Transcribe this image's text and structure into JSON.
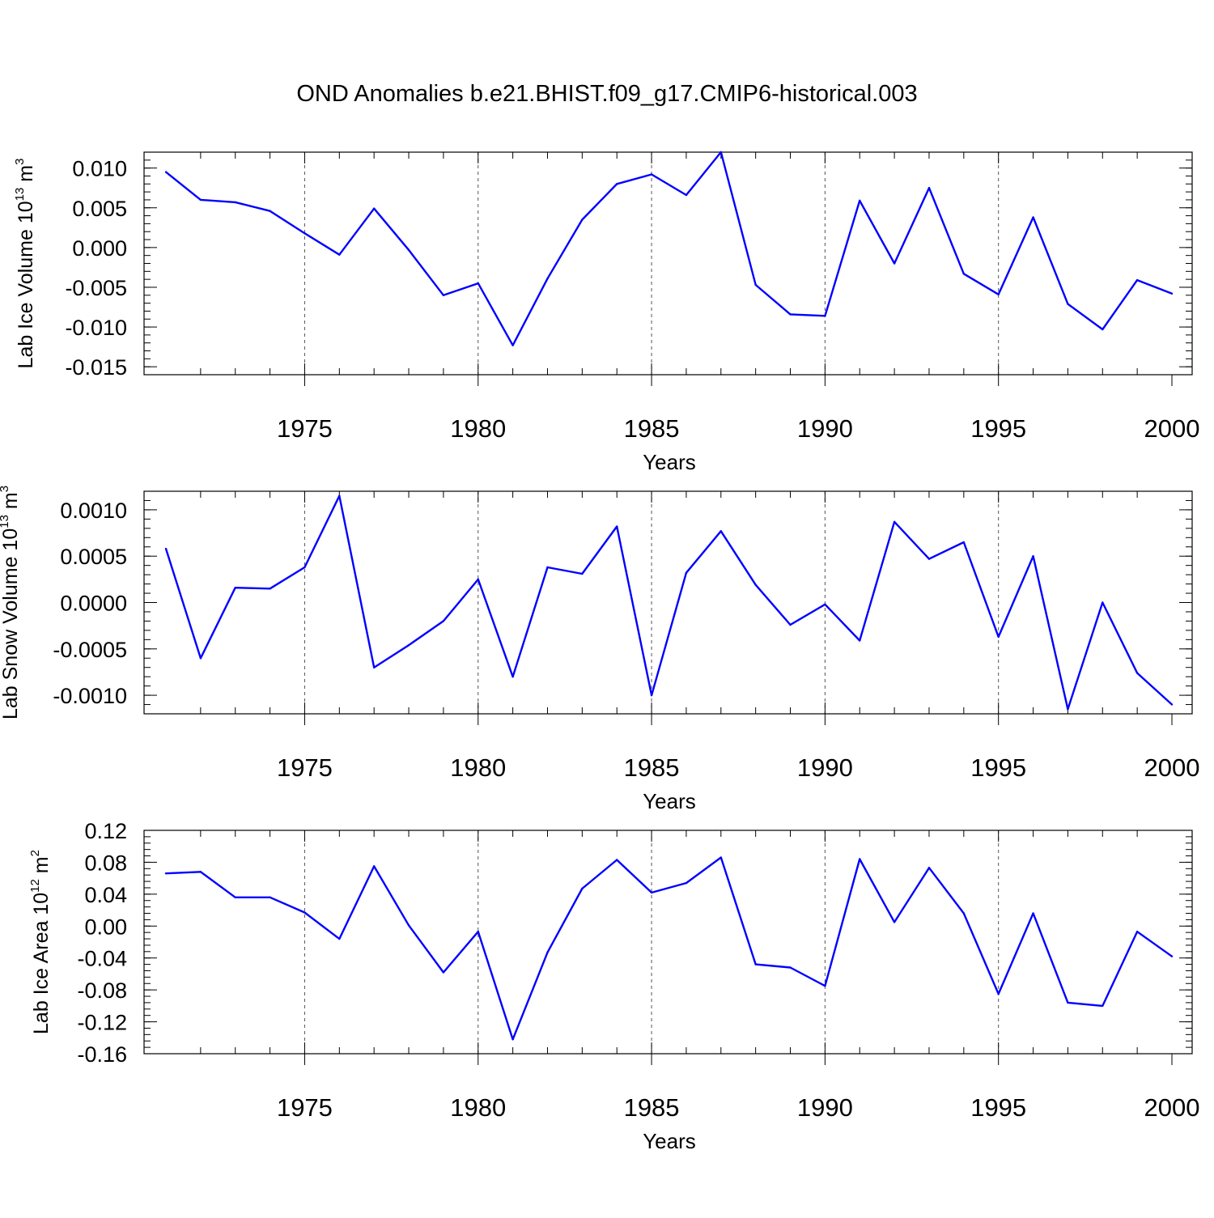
{
  "chart_data": {
    "title": "OND Anomalies b.e21.BHIST.f09_g17.CMIP6-historical.003",
    "line_color": "#0000ff",
    "panels": [
      {
        "type": "line",
        "ylabel": "Lab Ice Volume 10",
        "ylabel_exp": "13",
        "ylabel_unit": " m",
        "ylabel_unit_exp": "3",
        "xlabel": "Years",
        "xlim": [
          1971,
          2000
        ],
        "ylim": [
          -0.016,
          0.012
        ],
        "x_ticks": [
          1975,
          1980,
          1985,
          1990,
          1995,
          2000
        ],
        "x_tick_labels": [
          "1975",
          "1980",
          "1985",
          "1990",
          "1995",
          "2000"
        ],
        "y_ticks": [
          0.01,
          0.005,
          0.0,
          -0.005,
          -0.01,
          -0.015
        ],
        "y_tick_labels": [
          "0.010",
          "0.005",
          "0.000",
          "-0.005",
          "-0.010",
          "-0.015"
        ],
        "y_minor_step": 0.001,
        "grid": "dashed vertical at major x ticks",
        "x": [
          1971,
          1972,
          1973,
          1974,
          1975,
          1976,
          1977,
          1978,
          1979,
          1980,
          1981,
          1982,
          1983,
          1984,
          1985,
          1986,
          1987,
          1988,
          1989,
          1990,
          1991,
          1992,
          1993,
          1994,
          1995,
          1996,
          1997,
          1998,
          1999,
          2000
        ],
        "values": [
          0.0095,
          0.006,
          0.0057,
          0.0046,
          0.0018,
          -0.0009,
          0.0049,
          -0.0003,
          -0.006,
          -0.0045,
          -0.0123,
          -0.0039,
          0.0035,
          0.008,
          0.0092,
          0.0066,
          0.012,
          -0.0047,
          -0.0084,
          -0.0086,
          0.0059,
          -0.002,
          0.0075,
          -0.0033,
          -0.0059,
          0.0038,
          -0.0071,
          -0.0103,
          -0.0041,
          -0.0058
        ]
      },
      {
        "type": "line",
        "ylabel": "Lab Snow Volume 10",
        "ylabel_exp": "13",
        "ylabel_unit": " m",
        "ylabel_unit_exp": "3",
        "xlabel": "Years",
        "xlim": [
          1971,
          2000
        ],
        "ylim": [
          -0.0012,
          0.0012
        ],
        "x_ticks": [
          1975,
          1980,
          1985,
          1990,
          1995,
          2000
        ],
        "x_tick_labels": [
          "1975",
          "1980",
          "1985",
          "1990",
          "1995",
          "2000"
        ],
        "y_ticks": [
          0.001,
          0.0005,
          0.0,
          -0.0005,
          -0.001
        ],
        "y_tick_labels": [
          "0.0010",
          "0.0005",
          "0.0000",
          "-0.0005",
          "-0.0010"
        ],
        "y_minor_step": 0.0001,
        "grid": "dashed vertical at major x ticks",
        "x": [
          1971,
          1972,
          1973,
          1974,
          1975,
          1976,
          1977,
          1978,
          1979,
          1980,
          1981,
          1982,
          1983,
          1984,
          1985,
          1986,
          1987,
          1988,
          1989,
          1990,
          1991,
          1992,
          1993,
          1994,
          1995,
          1996,
          1997,
          1998,
          1999,
          2000
        ],
        "values": [
          0.00058,
          -0.0006,
          0.00016,
          0.00015,
          0.00038,
          0.00115,
          -0.0007,
          -0.00046,
          -0.0002,
          0.00025,
          -0.0008,
          0.00038,
          0.00031,
          0.00082,
          -0.001,
          0.00032,
          0.00077,
          0.00019,
          -0.00024,
          -2e-05,
          -0.00041,
          0.00087,
          0.00047,
          0.00065,
          -0.00037,
          0.0005,
          -0.00115,
          0.0,
          -0.00076,
          -0.0011
        ]
      },
      {
        "type": "line",
        "ylabel": "Lab Ice Area 10",
        "ylabel_exp": "12",
        "ylabel_unit": " m",
        "ylabel_unit_exp": "2",
        "xlabel": "Years",
        "xlim": [
          1971,
          2000
        ],
        "ylim": [
          -0.16,
          0.12
        ],
        "x_ticks": [
          1975,
          1980,
          1985,
          1990,
          1995,
          2000
        ],
        "x_tick_labels": [
          "1975",
          "1980",
          "1985",
          "1990",
          "1995",
          "2000"
        ],
        "y_ticks": [
          0.12,
          0.08,
          0.04,
          0.0,
          -0.04,
          -0.08,
          -0.12,
          -0.16
        ],
        "y_tick_labels": [
          "0.12",
          "0.08",
          "0.04",
          "0.00",
          "-0.04",
          "-0.08",
          "-0.12",
          "-0.16"
        ],
        "y_minor_step": 0.008,
        "grid": "dashed vertical at major x ticks",
        "x": [
          1971,
          1972,
          1973,
          1974,
          1975,
          1976,
          1977,
          1978,
          1979,
          1980,
          1981,
          1982,
          1983,
          1984,
          1985,
          1986,
          1987,
          1988,
          1989,
          1990,
          1991,
          1992,
          1993,
          1994,
          1995,
          1996,
          1997,
          1998,
          1999,
          2000
        ],
        "values": [
          0.066,
          0.068,
          0.036,
          0.036,
          0.017,
          -0.016,
          0.075,
          0.001,
          -0.058,
          -0.007,
          -0.142,
          -0.033,
          0.047,
          0.083,
          0.042,
          0.054,
          0.086,
          -0.048,
          -0.052,
          -0.075,
          0.084,
          0.005,
          0.073,
          0.016,
          -0.085,
          0.016,
          -0.096,
          -0.1,
          -0.007,
          -0.038
        ]
      }
    ]
  }
}
